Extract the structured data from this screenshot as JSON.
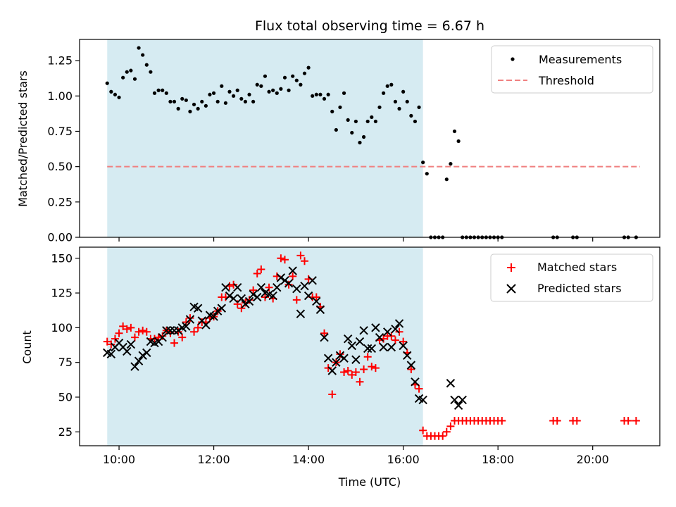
{
  "chart_data": [
    {
      "type": "scatter",
      "title": "Flux total observing time = 6.67 h",
      "xlabel": "",
      "ylabel": "Matched/Predicted stars",
      "ylim": [
        0,
        1.4
      ],
      "yticks": [
        "0.00",
        "0.25",
        "0.50",
        "0.75",
        "1.00",
        "1.25"
      ],
      "threshold": 0.5,
      "shaded_span": [
        "09:45",
        "16:25"
      ],
      "legend_position": "top-right",
      "legend": [
        "Measurements",
        "Threshold"
      ],
      "series": [
        {
          "name": "Measurements",
          "x": [
            "09:45",
            "09:50",
            "09:55",
            "10:00",
            "10:05",
            "10:10",
            "10:15",
            "10:20",
            "10:25",
            "10:30",
            "10:35",
            "10:40",
            "10:45",
            "10:50",
            "10:55",
            "11:00",
            "11:05",
            "11:10",
            "11:15",
            "11:20",
            "11:25",
            "11:30",
            "11:35",
            "11:40",
            "11:45",
            "11:50",
            "11:55",
            "12:00",
            "12:05",
            "12:10",
            "12:15",
            "12:20",
            "12:25",
            "12:30",
            "12:35",
            "12:40",
            "12:45",
            "12:50",
            "12:55",
            "13:00",
            "13:05",
            "13:10",
            "13:15",
            "13:20",
            "13:25",
            "13:30",
            "13:35",
            "13:40",
            "13:45",
            "13:50",
            "13:55",
            "14:00",
            "14:05",
            "14:10",
            "14:15",
            "14:20",
            "14:25",
            "14:30",
            "14:35",
            "14:40",
            "14:45",
            "14:50",
            "14:55",
            "15:00",
            "15:05",
            "15:10",
            "15:15",
            "15:20",
            "15:25",
            "15:30",
            "15:35",
            "15:40",
            "15:45",
            "15:50",
            "15:55",
            "16:00",
            "16:05",
            "16:10",
            "16:15",
            "16:20",
            "16:25",
            "16:30",
            "16:35",
            "16:40",
            "16:45",
            "16:50",
            "16:55",
            "17:00",
            "17:05",
            "17:10",
            "17:15",
            "17:20",
            "17:25",
            "17:30",
            "17:35",
            "17:40",
            "17:45",
            "17:50",
            "17:55",
            "18:00",
            "18:05",
            "19:10",
            "19:15",
            "19:35",
            "19:40",
            "20:40",
            "20:45",
            "20:55"
          ],
          "y": [
            1.09,
            1.03,
            1.01,
            0.99,
            1.13,
            1.17,
            1.18,
            1.12,
            1.34,
            1.29,
            1.22,
            1.17,
            1.02,
            1.04,
            1.04,
            1.02,
            0.96,
            0.96,
            0.91,
            0.98,
            0.97,
            0.89,
            0.94,
            0.91,
            0.96,
            0.93,
            1.01,
            1.02,
            0.96,
            1.07,
            0.95,
            1.03,
            1.0,
            1.04,
            0.98,
            0.96,
            1.01,
            0.96,
            1.08,
            1.07,
            1.14,
            1.03,
            1.04,
            1.02,
            1.05,
            1.13,
            1.04,
            1.14,
            1.11,
            1.08,
            1.16,
            1.2,
            1.0,
            1.01,
            1.01,
            0.98,
            1.01,
            0.89,
            0.76,
            0.92,
            1.02,
            0.83,
            0.74,
            0.82,
            0.67,
            0.71,
            0.82,
            0.85,
            0.82,
            0.92,
            1.02,
            1.07,
            1.08,
            0.96,
            0.91,
            1.03,
            0.96,
            0.86,
            0.82,
            0.92,
            0.53,
            0.45,
            0,
            0,
            0,
            0,
            0.41,
            0.52,
            0.75,
            0.68,
            0,
            0,
            0,
            0,
            0,
            0,
            0,
            0,
            0,
            0,
            0,
            0,
            0,
            0,
            0,
            0,
            0,
            0
          ]
        }
      ]
    },
    {
      "type": "scatter",
      "title": "",
      "xlabel": "Time (UTC)",
      "ylabel": "Count",
      "ylim": [
        15,
        158
      ],
      "yticks": [
        "25",
        "50",
        "75",
        "100",
        "125",
        "150"
      ],
      "xticks": [
        "10:00",
        "12:00",
        "14:00",
        "16:00",
        "18:00",
        "20:00"
      ],
      "xlim": [
        "09:10",
        "21:25"
      ],
      "shaded_span": [
        "09:45",
        "16:25"
      ],
      "legend_position": "top-right",
      "legend": [
        "Matched stars",
        "Predicted stars"
      ],
      "x": [
        "09:45",
        "09:50",
        "09:55",
        "10:00",
        "10:05",
        "10:10",
        "10:15",
        "10:20",
        "10:25",
        "10:30",
        "10:35",
        "10:40",
        "10:45",
        "10:50",
        "10:55",
        "11:00",
        "11:05",
        "11:10",
        "11:15",
        "11:20",
        "11:25",
        "11:30",
        "11:35",
        "11:40",
        "11:45",
        "11:50",
        "11:55",
        "12:00",
        "12:05",
        "12:10",
        "12:15",
        "12:20",
        "12:25",
        "12:30",
        "12:35",
        "12:40",
        "12:45",
        "12:50",
        "12:55",
        "13:00",
        "13:05",
        "13:10",
        "13:15",
        "13:20",
        "13:25",
        "13:30",
        "13:35",
        "13:40",
        "13:45",
        "13:50",
        "13:55",
        "14:00",
        "14:05",
        "14:10",
        "14:15",
        "14:20",
        "14:25",
        "14:30",
        "14:35",
        "14:40",
        "14:45",
        "14:50",
        "14:55",
        "15:00",
        "15:05",
        "15:10",
        "15:15",
        "15:20",
        "15:25",
        "15:30",
        "15:35",
        "15:40",
        "15:45",
        "15:50",
        "15:55",
        "16:00",
        "16:05",
        "16:10",
        "16:15",
        "16:20",
        "16:25",
        "16:30",
        "16:35",
        "16:40",
        "16:45",
        "16:50",
        "16:55",
        "17:00",
        "17:05",
        "17:10",
        "17:15",
        "17:20",
        "17:25",
        "17:30",
        "17:35",
        "17:40",
        "17:45",
        "17:50",
        "17:55",
        "18:00",
        "18:05",
        "19:10",
        "19:15",
        "19:35",
        "19:40",
        "20:40",
        "20:45",
        "20:55"
      ],
      "series": [
        {
          "name": "Matched stars",
          "y": [
            90,
            88,
            92,
            96,
            101,
            99,
            100,
            93,
            97,
            98,
            97,
            92,
            92,
            93,
            94,
            98,
            96,
            89,
            97,
            93,
            104,
            107,
            97,
            100,
            104,
            104,
            107,
            108,
            112,
            122,
            122,
            130,
            131,
            117,
            114,
            118,
            120,
            127,
            139,
            142,
            122,
            129,
            121,
            137,
            150,
            149,
            131,
            137,
            120,
            152,
            148,
            135,
            122,
            122,
            115,
            96,
            71,
            52,
            75,
            81,
            68,
            69,
            66,
            68,
            61,
            70,
            79,
            72,
            71,
            91,
            92,
            94,
            94,
            91,
            97,
            90,
            82,
            70,
            59,
            56,
            26,
            22,
            22,
            22,
            22,
            22,
            25,
            29,
            33,
            33,
            33,
            33,
            33,
            33,
            33,
            33,
            33,
            33,
            33,
            33,
            33,
            33,
            33,
            33,
            33,
            33,
            33,
            33
          ]
        },
        {
          "name": "Predicted stars",
          "y": [
            82,
            81,
            86,
            89,
            86,
            83,
            88,
            72,
            76,
            80,
            82,
            90,
            89,
            90,
            93,
            98,
            98,
            98,
            98,
            100,
            101,
            106,
            115,
            114,
            105,
            102,
            109,
            108,
            112,
            114,
            129,
            123,
            121,
            129,
            121,
            117,
            119,
            124,
            122,
            129,
            125,
            124,
            123,
            129,
            136,
            134,
            132,
            141,
            128,
            110,
            130,
            123,
            134,
            119,
            113,
            93,
            78,
            69,
            75,
            80,
            78,
            92,
            87,
            77,
            90,
            98,
            85,
            85,
            100,
            93,
            86,
            97,
            86,
            99,
            103,
            87,
            80,
            73,
            61,
            49,
            48,
            null,
            null,
            null,
            null,
            null,
            null,
            60,
            48,
            44,
            48,
            null,
            null,
            null,
            null,
            null,
            null,
            null,
            null,
            null,
            null,
            null,
            null,
            null,
            null,
            null,
            null,
            null
          ]
        }
      ]
    }
  ]
}
